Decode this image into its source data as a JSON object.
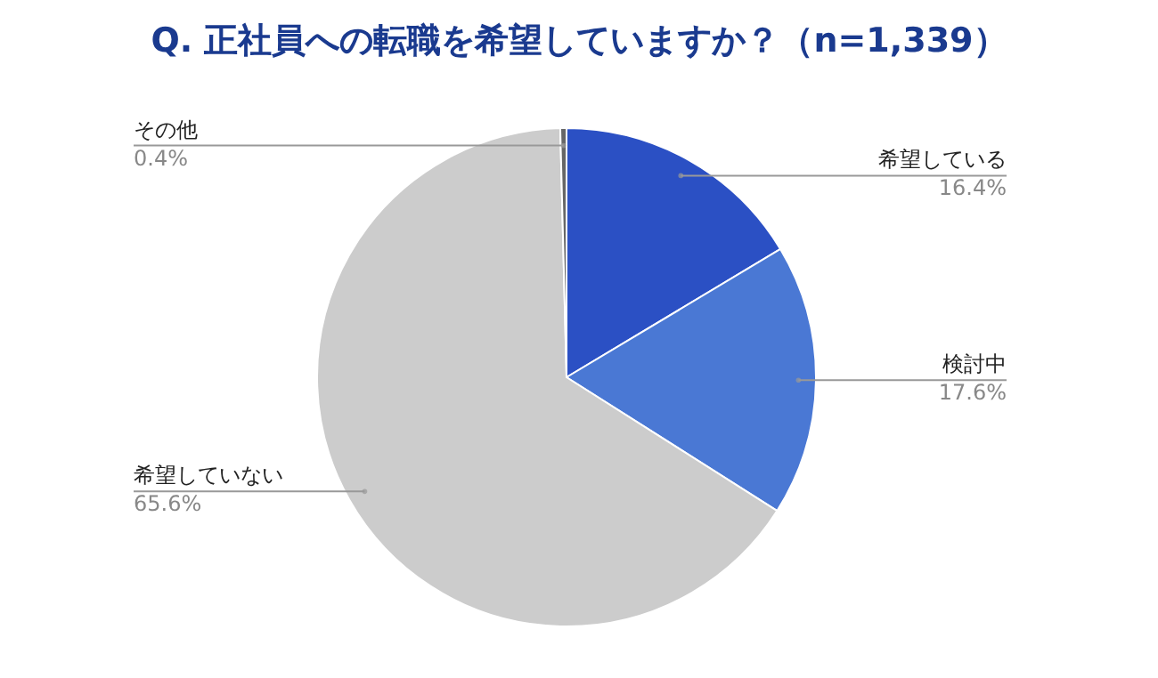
{
  "chart_data": {
    "type": "pie",
    "title": "Q. 正社員への転職を希望していますか？（n=1,339）",
    "categories": [
      "希望している",
      "検討中",
      "希望していない",
      "その他"
    ],
    "values": [
      16.4,
      17.6,
      65.6,
      0.4
    ],
    "colors": [
      "#2b50c4",
      "#4a78d4",
      "#cccccc",
      "#666666"
    ],
    "value_labels": [
      "16.4%",
      "17.6%",
      "65.6%",
      "0.4%"
    ],
    "legend": false
  }
}
